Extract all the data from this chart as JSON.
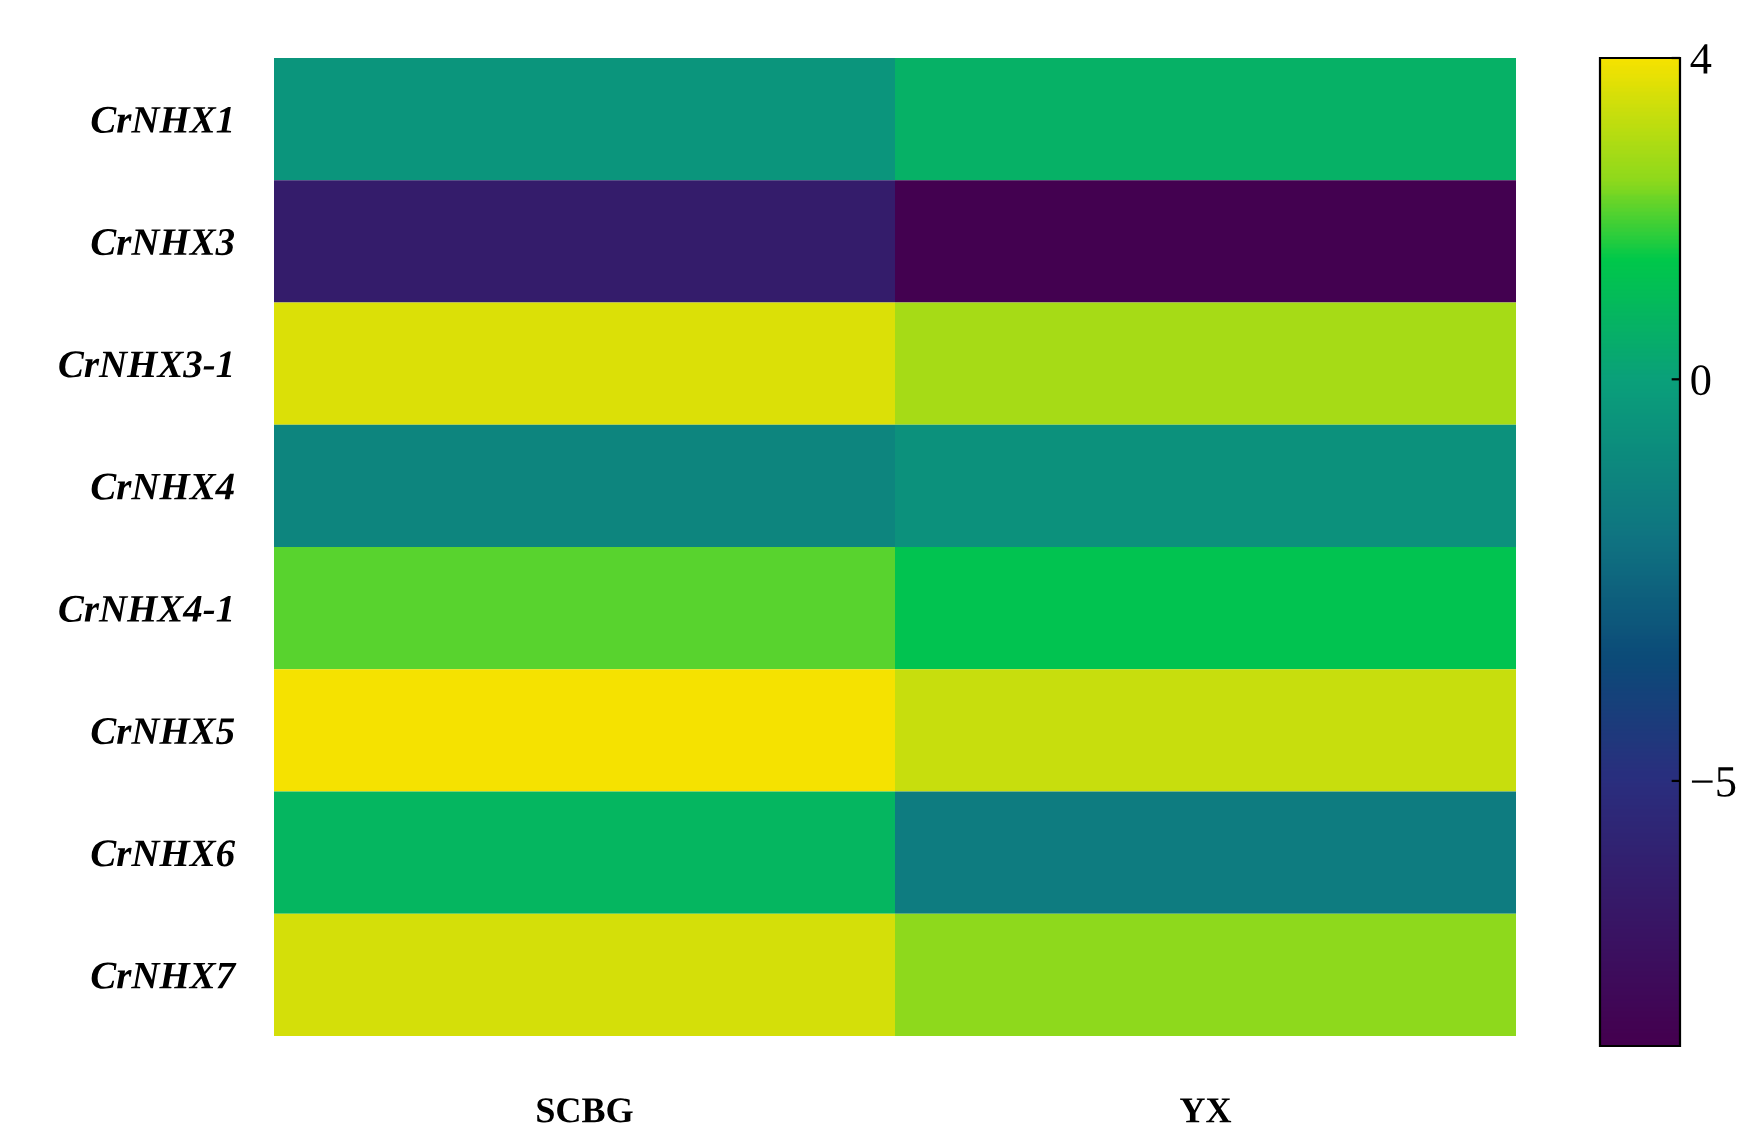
{
  "chart_data": {
    "type": "heatmap",
    "categories": [
      "SCBG",
      "YX"
    ],
    "y_categories": [
      "CrNHX1",
      "CrNHX3",
      "CrNHX3-1",
      "CrNHX4",
      "CrNHX4-1",
      "CrNHX5",
      "CrNHX6",
      "CrNHX7"
    ],
    "cells": [
      [
        -0.5,
        0.6
      ],
      [
        -6.3,
        -8.2
      ],
      [
        3.6,
        2.8
      ],
      [
        -1.2,
        -0.7
      ],
      [
        2.1,
        1.3
      ],
      [
        4.0,
        3.3
      ],
      [
        0.8,
        -1.6
      ],
      [
        3.5,
        2.5
      ]
    ],
    "clim": [
      -8.3,
      4
    ],
    "cticks": [
      -5,
      0,
      4
    ]
  }
}
